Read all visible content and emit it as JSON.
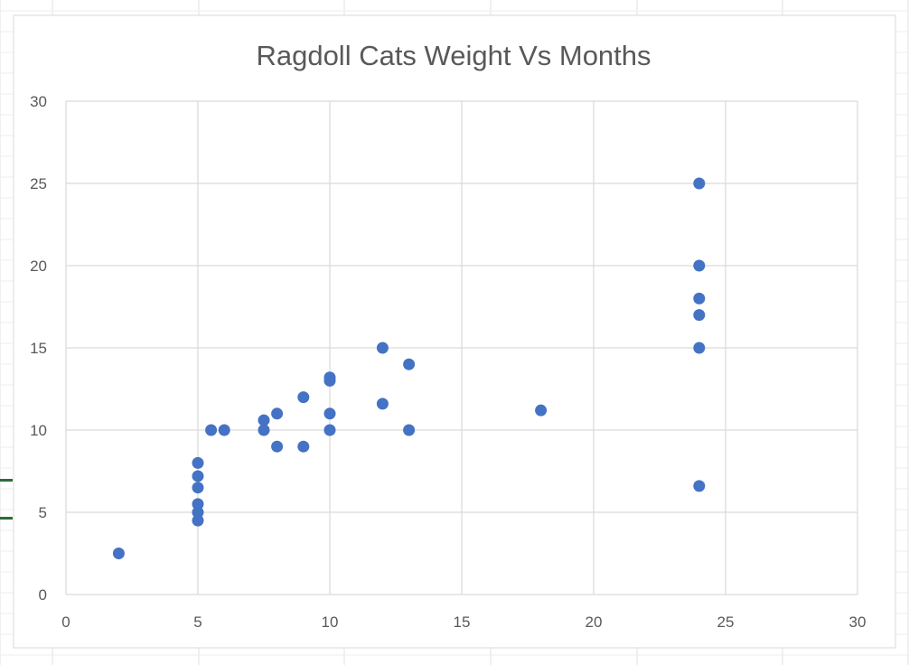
{
  "chart_data": {
    "type": "scatter",
    "title": "Ragdoll Cats Weight Vs Months",
    "xlabel": "",
    "ylabel": "",
    "xlim": [
      0,
      30
    ],
    "ylim": [
      0,
      30
    ],
    "x_ticks": [
      0,
      5,
      10,
      15,
      20,
      25,
      30
    ],
    "y_ticks": [
      0,
      5,
      10,
      15,
      20,
      25,
      30
    ],
    "grid": true,
    "legend": "none",
    "marker_color": "#4472C4",
    "series": [
      {
        "points": [
          {
            "x": 2,
            "y": 2.5
          },
          {
            "x": 5,
            "y": 4.5
          },
          {
            "x": 5,
            "y": 5
          },
          {
            "x": 5,
            "y": 5.5
          },
          {
            "x": 5,
            "y": 6.5
          },
          {
            "x": 5,
            "y": 7.2
          },
          {
            "x": 5,
            "y": 8
          },
          {
            "x": 5.5,
            "y": 10
          },
          {
            "x": 6,
            "y": 10
          },
          {
            "x": 7.5,
            "y": 10
          },
          {
            "x": 7.5,
            "y": 10.6
          },
          {
            "x": 8,
            "y": 9
          },
          {
            "x": 8,
            "y": 11
          },
          {
            "x": 9,
            "y": 9
          },
          {
            "x": 9,
            "y": 12
          },
          {
            "x": 10,
            "y": 10
          },
          {
            "x": 10,
            "y": 11
          },
          {
            "x": 10,
            "y": 13
          },
          {
            "x": 10,
            "y": 13.2
          },
          {
            "x": 12,
            "y": 11.6
          },
          {
            "x": 12,
            "y": 15
          },
          {
            "x": 13,
            "y": 10
          },
          {
            "x": 13,
            "y": 14
          },
          {
            "x": 18,
            "y": 11.2
          },
          {
            "x": 24,
            "y": 6.6
          },
          {
            "x": 24,
            "y": 15
          },
          {
            "x": 24,
            "y": 17
          },
          {
            "x": 24,
            "y": 18
          },
          {
            "x": 24,
            "y": 20
          },
          {
            "x": 24,
            "y": 25
          }
        ]
      }
    ]
  }
}
